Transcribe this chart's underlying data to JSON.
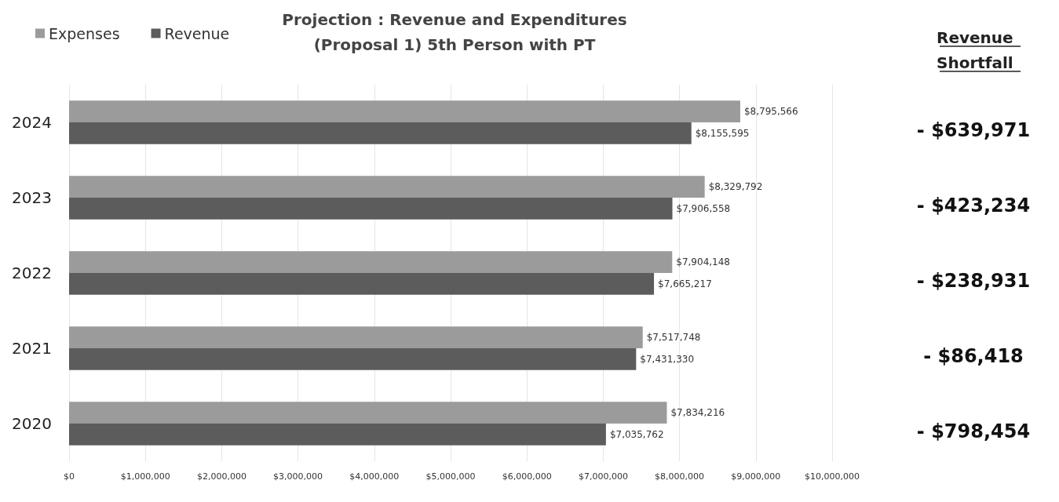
{
  "chart_data": {
    "type": "bar",
    "orientation": "horizontal",
    "title": "Projection : Revenue and Expenditures\n(Proposal 1) 5th Person with PT",
    "categories": [
      "2024",
      "2023",
      "2022",
      "2021",
      "2020"
    ],
    "series": [
      {
        "name": "Expenses",
        "color": "#9b9b9b",
        "values": [
          8795566,
          8329792,
          7904148,
          7517748,
          7834216
        ],
        "value_labels": [
          "$8,795,566",
          "$8,329,792",
          "$7,904,148",
          "$7,517,748",
          "$7,834,216"
        ]
      },
      {
        "name": "Revenue",
        "color": "#5c5c5c",
        "values": [
          8155595,
          7906558,
          7665217,
          7431330,
          7035762
        ],
        "value_labels": [
          "$8,155,595",
          "$7,906,558",
          "$7,665,217",
          "$7,431,330",
          "$7,035,762"
        ]
      }
    ],
    "xlim": [
      0,
      10000000
    ],
    "xticks": [
      {
        "value": 0,
        "label": "$0"
      },
      {
        "value": 1000000,
        "label": "$1,000,000"
      },
      {
        "value": 2000000,
        "label": "$2,000,000"
      },
      {
        "value": 3000000,
        "label": "$3,000,000"
      },
      {
        "value": 4000000,
        "label": "$4,000,000"
      },
      {
        "value": 5000000,
        "label": "$5,000,000"
      },
      {
        "value": 6000000,
        "label": "$6,000,000"
      },
      {
        "value": 7000000,
        "label": "$7,000,000"
      },
      {
        "value": 8000000,
        "label": "$8,000,000"
      },
      {
        "value": 9000000,
        "label": "$9,000,000"
      },
      {
        "value": 10000000,
        "label": "$10,000,000"
      }
    ],
    "grid": "x",
    "legend": "top left",
    "annotations": [
      "Revenue Shortfall",
      "- $639,971",
      "- $423,234",
      "- $238,931",
      "- $86,418",
      "- $798,454"
    ]
  }
}
